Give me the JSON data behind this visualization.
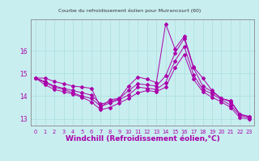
{
  "bg_color": "#c8eef0",
  "line_color": "#aa00aa",
  "grid_color": "#aadddd",
  "xlabel": "Windchill (Refroidissement éolien,°C)",
  "xlabel_fontsize": 6.5,
  "ylim": [
    12.7,
    17.4
  ],
  "xlim": [
    -0.5,
    23.5
  ],
  "yticks": [
    13,
    14,
    15,
    16
  ],
  "xticks": [
    0,
    1,
    2,
    3,
    4,
    5,
    6,
    7,
    8,
    9,
    10,
    11,
    12,
    13,
    14,
    15,
    16,
    17,
    18,
    19,
    20,
    21,
    22,
    23
  ],
  "series": [
    [
      14.8,
      14.8,
      14.65,
      14.55,
      14.45,
      14.4,
      14.35,
      13.5,
      13.85,
      13.9,
      14.45,
      14.85,
      14.75,
      14.6,
      17.2,
      16.1,
      16.65,
      15.3,
      14.8,
      14.25,
      13.9,
      13.75,
      13.2,
      13.1
    ],
    [
      14.8,
      14.65,
      14.45,
      14.35,
      14.25,
      14.15,
      14.05,
      13.65,
      13.75,
      13.9,
      14.25,
      14.55,
      14.5,
      14.45,
      14.9,
      15.9,
      16.55,
      15.25,
      14.45,
      14.2,
      13.9,
      13.8,
      13.2,
      13.1
    ],
    [
      14.8,
      14.6,
      14.4,
      14.3,
      14.15,
      14.0,
      13.9,
      13.55,
      13.7,
      13.85,
      14.05,
      14.4,
      14.35,
      14.3,
      14.6,
      15.55,
      16.2,
      14.95,
      14.3,
      14.1,
      13.85,
      13.6,
      13.15,
      13.05
    ],
    [
      14.8,
      14.5,
      14.3,
      14.2,
      14.1,
      13.95,
      13.75,
      13.4,
      13.5,
      13.7,
      13.9,
      14.15,
      14.25,
      14.2,
      14.4,
      15.25,
      15.85,
      14.75,
      14.2,
      13.95,
      13.75,
      13.5,
      13.05,
      13.0
    ]
  ]
}
